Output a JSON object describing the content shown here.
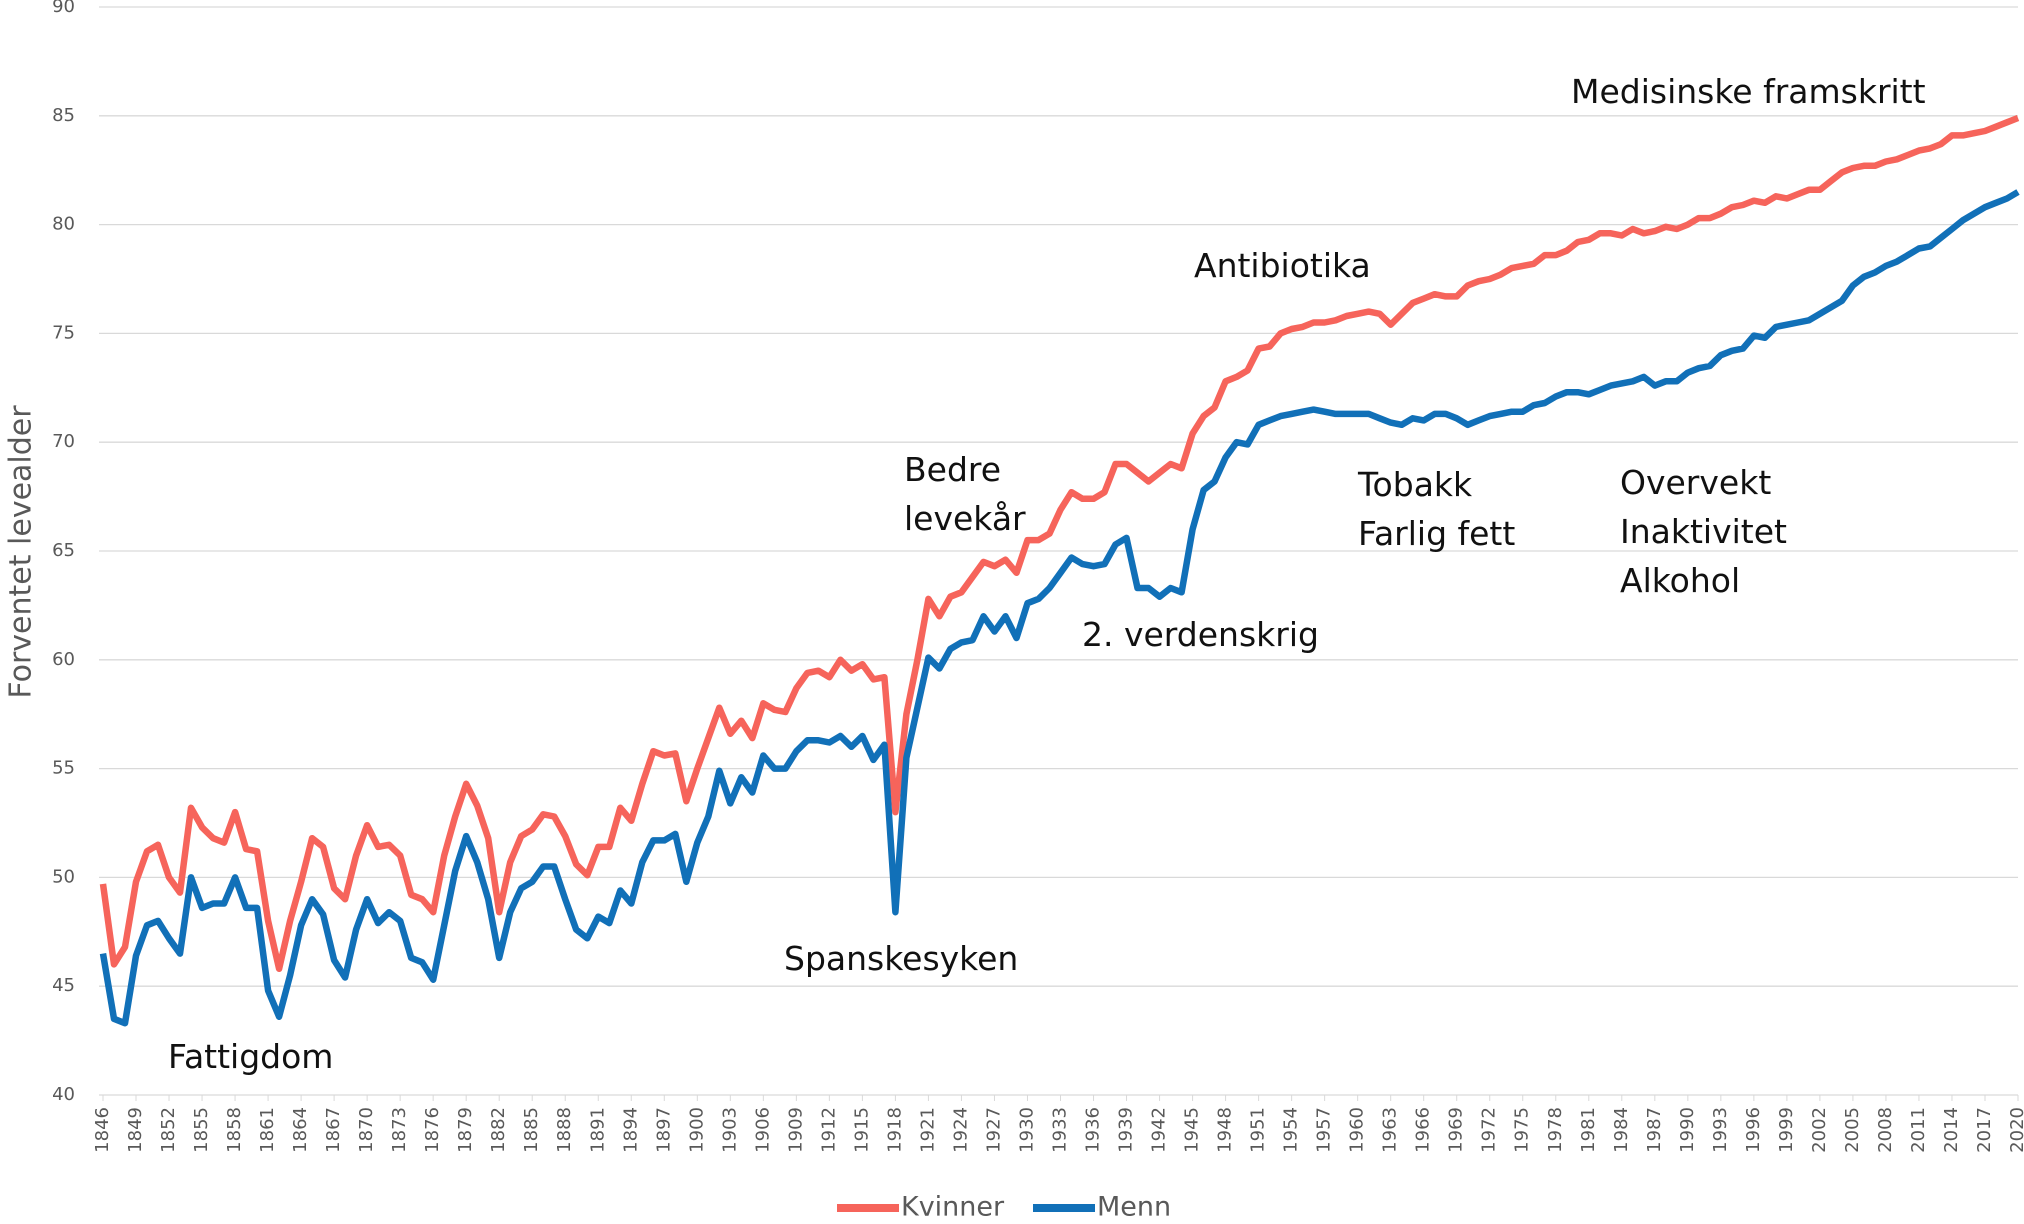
{
  "chart_data": {
    "type": "line",
    "ylabel": "Forventet levealder",
    "x": [
      1846,
      1847,
      1848,
      1849,
      1850,
      1851,
      1852,
      1853,
      1854,
      1855,
      1856,
      1857,
      1858,
      1859,
      1860,
      1861,
      1862,
      1863,
      1864,
      1865,
      1866,
      1867,
      1868,
      1869,
      1870,
      1871,
      1872,
      1873,
      1874,
      1875,
      1876,
      1877,
      1878,
      1879,
      1880,
      1881,
      1882,
      1883,
      1884,
      1885,
      1886,
      1887,
      1888,
      1889,
      1890,
      1891,
      1892,
      1893,
      1894,
      1895,
      1896,
      1897,
      1898,
      1899,
      1900,
      1901,
      1902,
      1903,
      1904,
      1905,
      1906,
      1907,
      1908,
      1909,
      1910,
      1911,
      1912,
      1913,
      1914,
      1915,
      1916,
      1917,
      1918,
      1919,
      1920,
      1921,
      1922,
      1923,
      1924,
      1925,
      1926,
      1927,
      1928,
      1929,
      1930,
      1931,
      1932,
      1933,
      1934,
      1935,
      1936,
      1937,
      1938,
      1939,
      1940,
      1941,
      1942,
      1943,
      1944,
      1945,
      1946,
      1947,
      1948,
      1949,
      1950,
      1951,
      1952,
      1953,
      1954,
      1955,
      1956,
      1957,
      1958,
      1959,
      1960,
      1961,
      1962,
      1963,
      1964,
      1965,
      1966,
      1967,
      1968,
      1969,
      1970,
      1971,
      1972,
      1973,
      1974,
      1975,
      1976,
      1977,
      1978,
      1979,
      1980,
      1981,
      1982,
      1983,
      1984,
      1985,
      1986,
      1987,
      1988,
      1989,
      1990,
      1991,
      1992,
      1993,
      1994,
      1995,
      1996,
      1997,
      1998,
      1999,
      2000,
      2001,
      2002,
      2003,
      2004,
      2005,
      2006,
      2007,
      2008,
      2009,
      2010,
      2011,
      2012,
      2013,
      2014,
      2015,
      2016,
      2017,
      2018,
      2019,
      2020
    ],
    "series": [
      {
        "name": "Kvinner",
        "color": "#f6645b",
        "values": [
          49.7,
          46.0,
          46.8,
          49.8,
          51.2,
          51.5,
          50.0,
          49.3,
          53.2,
          52.3,
          51.8,
          51.6,
          53.0,
          51.3,
          51.2,
          48.0,
          45.8,
          48.0,
          49.8,
          51.8,
          51.4,
          49.5,
          49.0,
          51.0,
          52.4,
          51.4,
          51.5,
          51.0,
          49.2,
          49.0,
          48.4,
          51.0,
          52.8,
          54.3,
          53.3,
          51.8,
          48.4,
          50.7,
          51.9,
          52.2,
          52.9,
          52.8,
          51.9,
          50.6,
          50.1,
          51.4,
          51.4,
          53.2,
          52.6,
          54.3,
          55.8,
          55.6,
          55.7,
          53.5,
          55.0,
          56.4,
          57.8,
          56.6,
          57.2,
          56.4,
          58.0,
          57.7,
          57.6,
          58.7,
          59.4,
          59.5,
          59.2,
          60.0,
          59.5,
          59.8,
          59.1,
          59.2,
          53.0,
          57.5,
          60.0,
          62.8,
          62.0,
          62.9,
          63.1,
          63.8,
          64.5,
          64.3,
          64.6,
          64.0,
          65.5,
          65.5,
          65.8,
          66.9,
          67.7,
          67.4,
          67.4,
          67.7,
          69.0,
          69.0,
          68.6,
          68.2,
          68.6,
          69.0,
          68.8,
          70.4,
          71.2,
          71.6,
          72.8,
          73.0,
          73.3,
          74.3,
          74.4,
          75.0,
          75.2,
          75.3,
          75.5,
          75.5,
          75.6,
          75.8,
          75.9,
          76.0,
          75.9,
          75.4,
          75.9,
          76.4,
          76.6,
          76.8,
          76.7,
          76.7,
          77.2,
          77.4,
          77.5,
          77.7,
          78.0,
          78.1,
          78.2,
          78.6,
          78.6,
          78.8,
          79.2,
          79.3,
          79.6,
          79.6,
          79.5,
          79.8,
          79.6,
          79.7,
          79.9,
          79.8,
          80.0,
          80.3,
          80.3,
          80.5,
          80.8,
          80.9,
          81.1,
          81.0,
          81.3,
          81.2,
          81.4,
          81.6,
          81.6,
          82.0,
          82.4,
          82.6,
          82.7,
          82.7,
          82.9,
          83.0,
          83.2,
          83.4,
          83.5,
          83.7,
          84.1,
          84.1,
          84.2,
          84.3,
          84.5,
          84.7,
          84.9
        ]
      },
      {
        "name": "Menn",
        "color": "#1170b8",
        "values": [
          46.5,
          43.5,
          43.3,
          46.4,
          47.8,
          48.0,
          47.2,
          46.5,
          50.0,
          48.6,
          48.8,
          48.8,
          50.0,
          48.6,
          48.6,
          44.8,
          43.6,
          45.5,
          47.8,
          49.0,
          48.3,
          46.2,
          45.4,
          47.6,
          49.0,
          47.9,
          48.4,
          48.0,
          46.3,
          46.1,
          45.3,
          47.8,
          50.3,
          51.9,
          50.7,
          49.0,
          46.3,
          48.4,
          49.5,
          49.8,
          50.5,
          50.5,
          49.0,
          47.6,
          47.2,
          48.2,
          47.9,
          49.4,
          48.8,
          50.7,
          51.7,
          51.7,
          52.0,
          49.8,
          51.6,
          52.8,
          54.9,
          53.4,
          54.6,
          53.9,
          55.6,
          55.0,
          55.0,
          55.8,
          56.3,
          56.3,
          56.2,
          56.5,
          56.0,
          56.5,
          55.4,
          56.1,
          48.4,
          55.5,
          57.8,
          60.1,
          59.6,
          60.5,
          60.8,
          60.9,
          62.0,
          61.3,
          62.0,
          61.0,
          62.6,
          62.8,
          63.3,
          64.0,
          64.7,
          64.4,
          64.3,
          64.4,
          65.3,
          65.6,
          63.3,
          63.3,
          62.9,
          63.3,
          63.1,
          66.0,
          67.8,
          68.2,
          69.3,
          70.0,
          69.9,
          70.8,
          71.0,
          71.2,
          71.3,
          71.4,
          71.5,
          71.4,
          71.3,
          71.3,
          71.3,
          71.3,
          71.1,
          70.9,
          70.8,
          71.1,
          71.0,
          71.3,
          71.3,
          71.1,
          70.8,
          71.0,
          71.2,
          71.3,
          71.4,
          71.4,
          71.7,
          71.8,
          72.1,
          72.3,
          72.3,
          72.2,
          72.4,
          72.6,
          72.7,
          72.8,
          73.0,
          72.6,
          72.8,
          72.8,
          73.2,
          73.4,
          73.5,
          74.0,
          74.2,
          74.3,
          74.9,
          74.8,
          75.3,
          75.4,
          75.5,
          75.6,
          75.9,
          76.2,
          76.5,
          77.2,
          77.6,
          77.8,
          78.1,
          78.3,
          78.6,
          78.9,
          79.0,
          79.4,
          79.8,
          80.2,
          80.5,
          80.8,
          81.0,
          81.2,
          81.5
        ]
      }
    ],
    "xlim": [
      1846,
      2020
    ],
    "xticks": [
      1846,
      1849,
      1852,
      1855,
      1858,
      1861,
      1864,
      1867,
      1870,
      1873,
      1876,
      1879,
      1882,
      1885,
      1888,
      1891,
      1894,
      1897,
      1900,
      1903,
      1906,
      1909,
      1912,
      1915,
      1918,
      1921,
      1924,
      1927,
      1930,
      1933,
      1936,
      1939,
      1942,
      1945,
      1948,
      1951,
      1954,
      1957,
      1960,
      1963,
      1966,
      1969,
      1972,
      1975,
      1978,
      1981,
      1984,
      1987,
      1990,
      1993,
      1996,
      1999,
      2002,
      2005,
      2008,
      2011,
      2014,
      2017,
      2020
    ],
    "ylim": [
      40,
      90
    ],
    "yticks": [
      40,
      45,
      50,
      55,
      60,
      65,
      70,
      75,
      80,
      85,
      90
    ],
    "grid": true,
    "legend": "bottom",
    "annotations": [
      [
        "Fattigdom"
      ],
      [
        "Spanskesyken"
      ],
      [
        "Bedre",
        "levekår"
      ],
      [
        "2. verdenskrig"
      ],
      [
        "Antibiotika"
      ],
      [
        "Tobakk",
        "Farlig fett"
      ],
      [
        "Overvekt",
        "Inaktivitet",
        "Alkohol"
      ],
      [
        "Medisinske framskritt"
      ]
    ]
  }
}
